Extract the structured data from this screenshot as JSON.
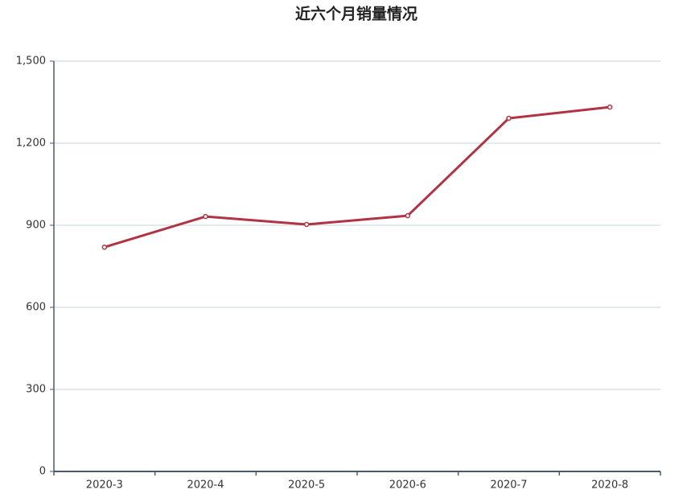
{
  "chart_data": {
    "type": "line",
    "title": "近六个月销量情况",
    "categories": [
      "2020-3",
      "2020-4",
      "2020-5",
      "2020-6",
      "2020-7",
      "2020-8"
    ],
    "values": [
      820,
      932,
      903,
      935,
      1291,
      1332
    ],
    "color": "#b03444",
    "ylim": [
      0,
      1500
    ],
    "yticks": [
      0,
      300,
      600,
      900,
      {
        "value": 1200,
        "label": "1,200"
      },
      {
        "value": 1500,
        "label": "1,500"
      }
    ],
    "grid": true
  }
}
